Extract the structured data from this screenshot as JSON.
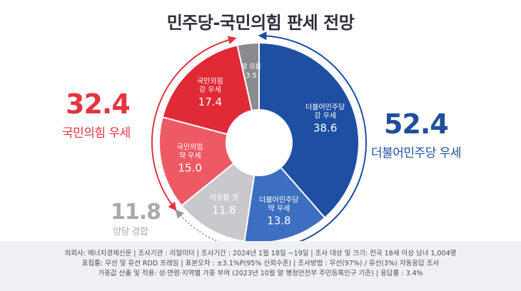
{
  "title": "민주당-국민의힘 판세 전망",
  "summary": {
    "ppp_total": "32.4",
    "ppp_label": "국민의힘 우세",
    "dp_total": "52.4",
    "dp_label": "더불어민주당 우세",
    "tossup_total": "11.8",
    "tossup_label": "양당 경합"
  },
  "chart_data": {
    "type": "pie",
    "title": "민주당-국민의힘 판세 전망",
    "slices": [
      {
        "label_lines": [
          "더불어민주당",
          "강 우세"
        ],
        "value": 38.6,
        "color": "#1e4fa3"
      },
      {
        "label_lines": [
          "더불어민주당",
          "약 우세"
        ],
        "value": 13.8,
        "color": "#3d6fc0"
      },
      {
        "label_lines": [
          "비슷할 것"
        ],
        "value": 11.8,
        "color": "#c8c9cc"
      },
      {
        "label_lines": [
          "국민의힘",
          "약 우세"
        ],
        "value": 15.0,
        "color": "#ee5a64"
      },
      {
        "label_lines": [
          "국민의힘",
          "강 우세"
        ],
        "value": 17.4,
        "color": "#e02a36"
      },
      {
        "label_lines": [
          "잘 모름"
        ],
        "value": 3.5,
        "color": "#8a8b8f"
      }
    ]
  },
  "footer": {
    "line1": "의뢰사: 에너지경제신문 | 조사기관 : 리얼미터 | 조사기간 : 2024년 1월 18일 ~19일 | 조사 대상 및 크기: 전국 18세 이상 남녀 1,004명",
    "line2": "표집틀: 무선 및 유선 RDD 프레임 | 표본오차 : ±3.1%P(95% 신뢰수준) | 조사방법 : 무선(97%) / 유선(3%) 자동응답 조사",
    "line3": "가중값 산출 및 적용: 성·연령·지역별 가중 부여 (2023년 10월 말 행정안전부 주민등록인구 기준) | 응답률 : 3.4%"
  }
}
